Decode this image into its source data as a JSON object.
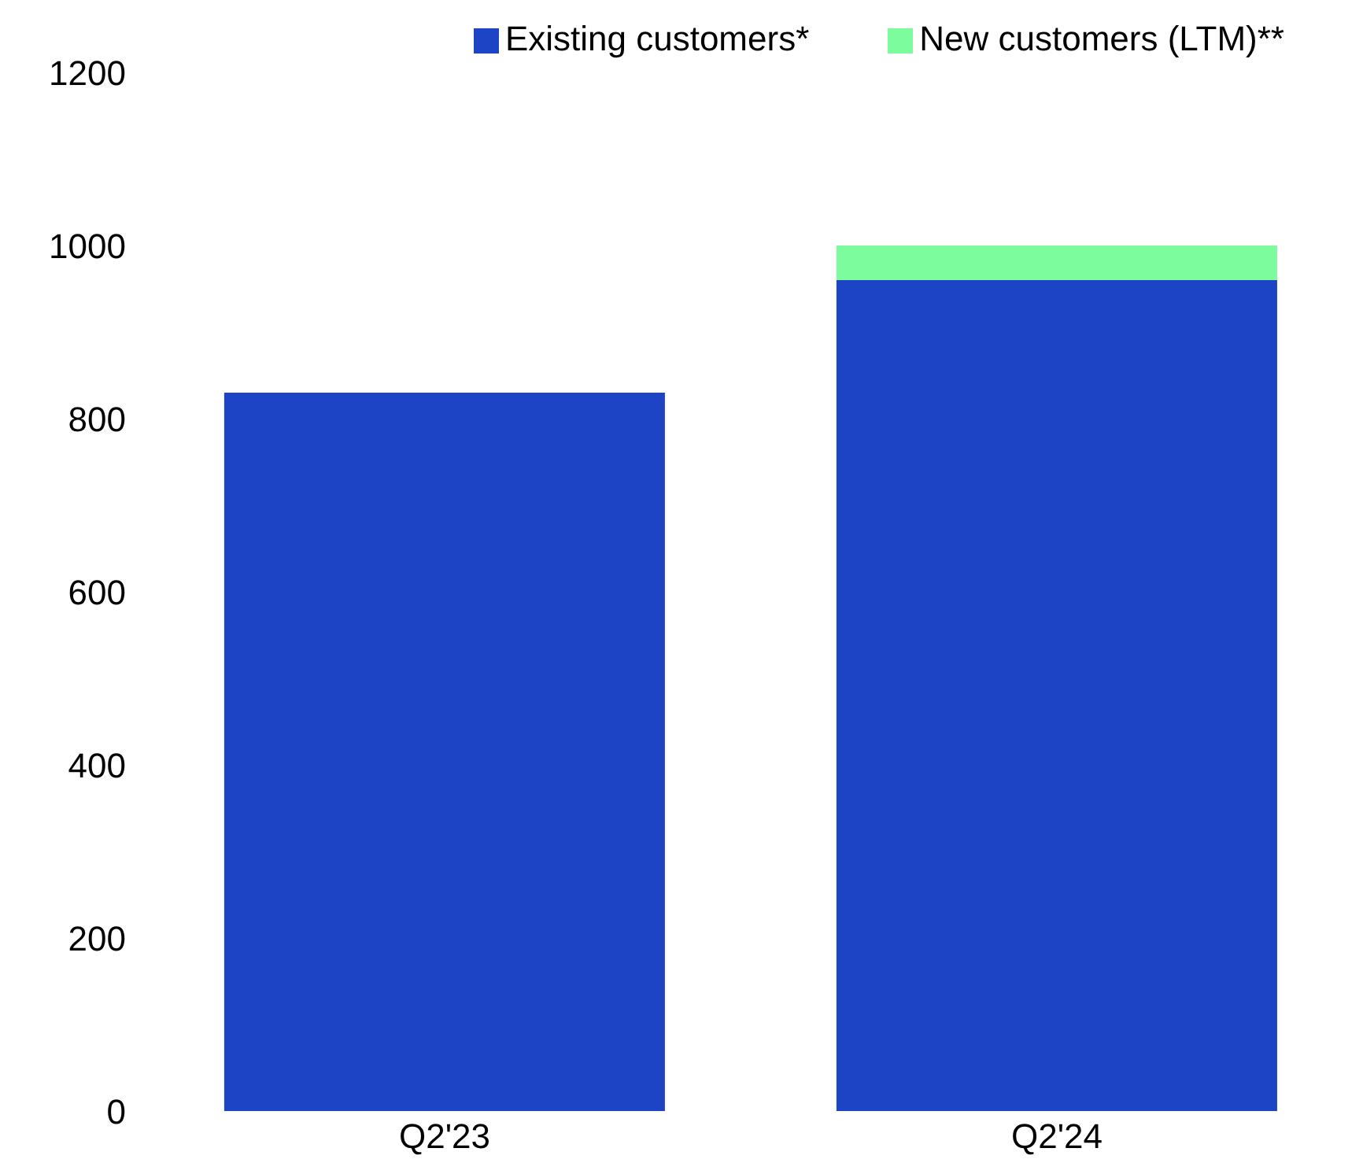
{
  "chart_data": {
    "type": "bar",
    "stacked": true,
    "categories": [
      "Q2'23",
      "Q2'24"
    ],
    "series": [
      {
        "name": "Existing customers*",
        "color": "#1e44c6",
        "values": [
          830,
          960
        ]
      },
      {
        "name": "New customers (LTM)**",
        "color": "#7dfc9e",
        "values": [
          null,
          40
        ]
      }
    ],
    "ylim": [
      0,
      1200
    ],
    "yticks": [
      0,
      200,
      400,
      600,
      800,
      1000,
      1200
    ],
    "grid": false,
    "legend": "top right"
  }
}
